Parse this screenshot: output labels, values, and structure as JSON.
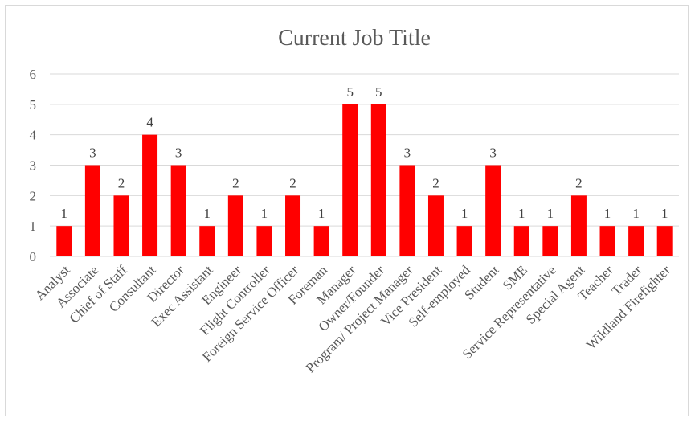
{
  "chart_data": {
    "type": "bar",
    "title": "Current Job Title",
    "xlabel": "",
    "ylabel": "",
    "ylim": [
      0,
      6
    ],
    "yticks": [
      0,
      1,
      2,
      3,
      4,
      5,
      6
    ],
    "grid": true,
    "legend": "none",
    "bar_color": "#ff0000",
    "categories": [
      "Analyst",
      "Associate",
      "Chief of Staff",
      "Consultant",
      "Director",
      "Exec Assistant",
      "Engineer",
      "Flight Controller",
      "Foreign Service Officer",
      "Foreman",
      "Manager",
      "Owner/Founder",
      "Program/ Project Manager",
      "Vice President",
      "Self-employed",
      "Student",
      "SME",
      "Service Representative",
      "Special Agent",
      "Teacher",
      "Trader",
      "Wildland Firefighter"
    ],
    "values": [
      1,
      3,
      2,
      4,
      3,
      1,
      2,
      1,
      2,
      1,
      5,
      5,
      3,
      2,
      1,
      3,
      1,
      1,
      2,
      1,
      1,
      1
    ]
  }
}
